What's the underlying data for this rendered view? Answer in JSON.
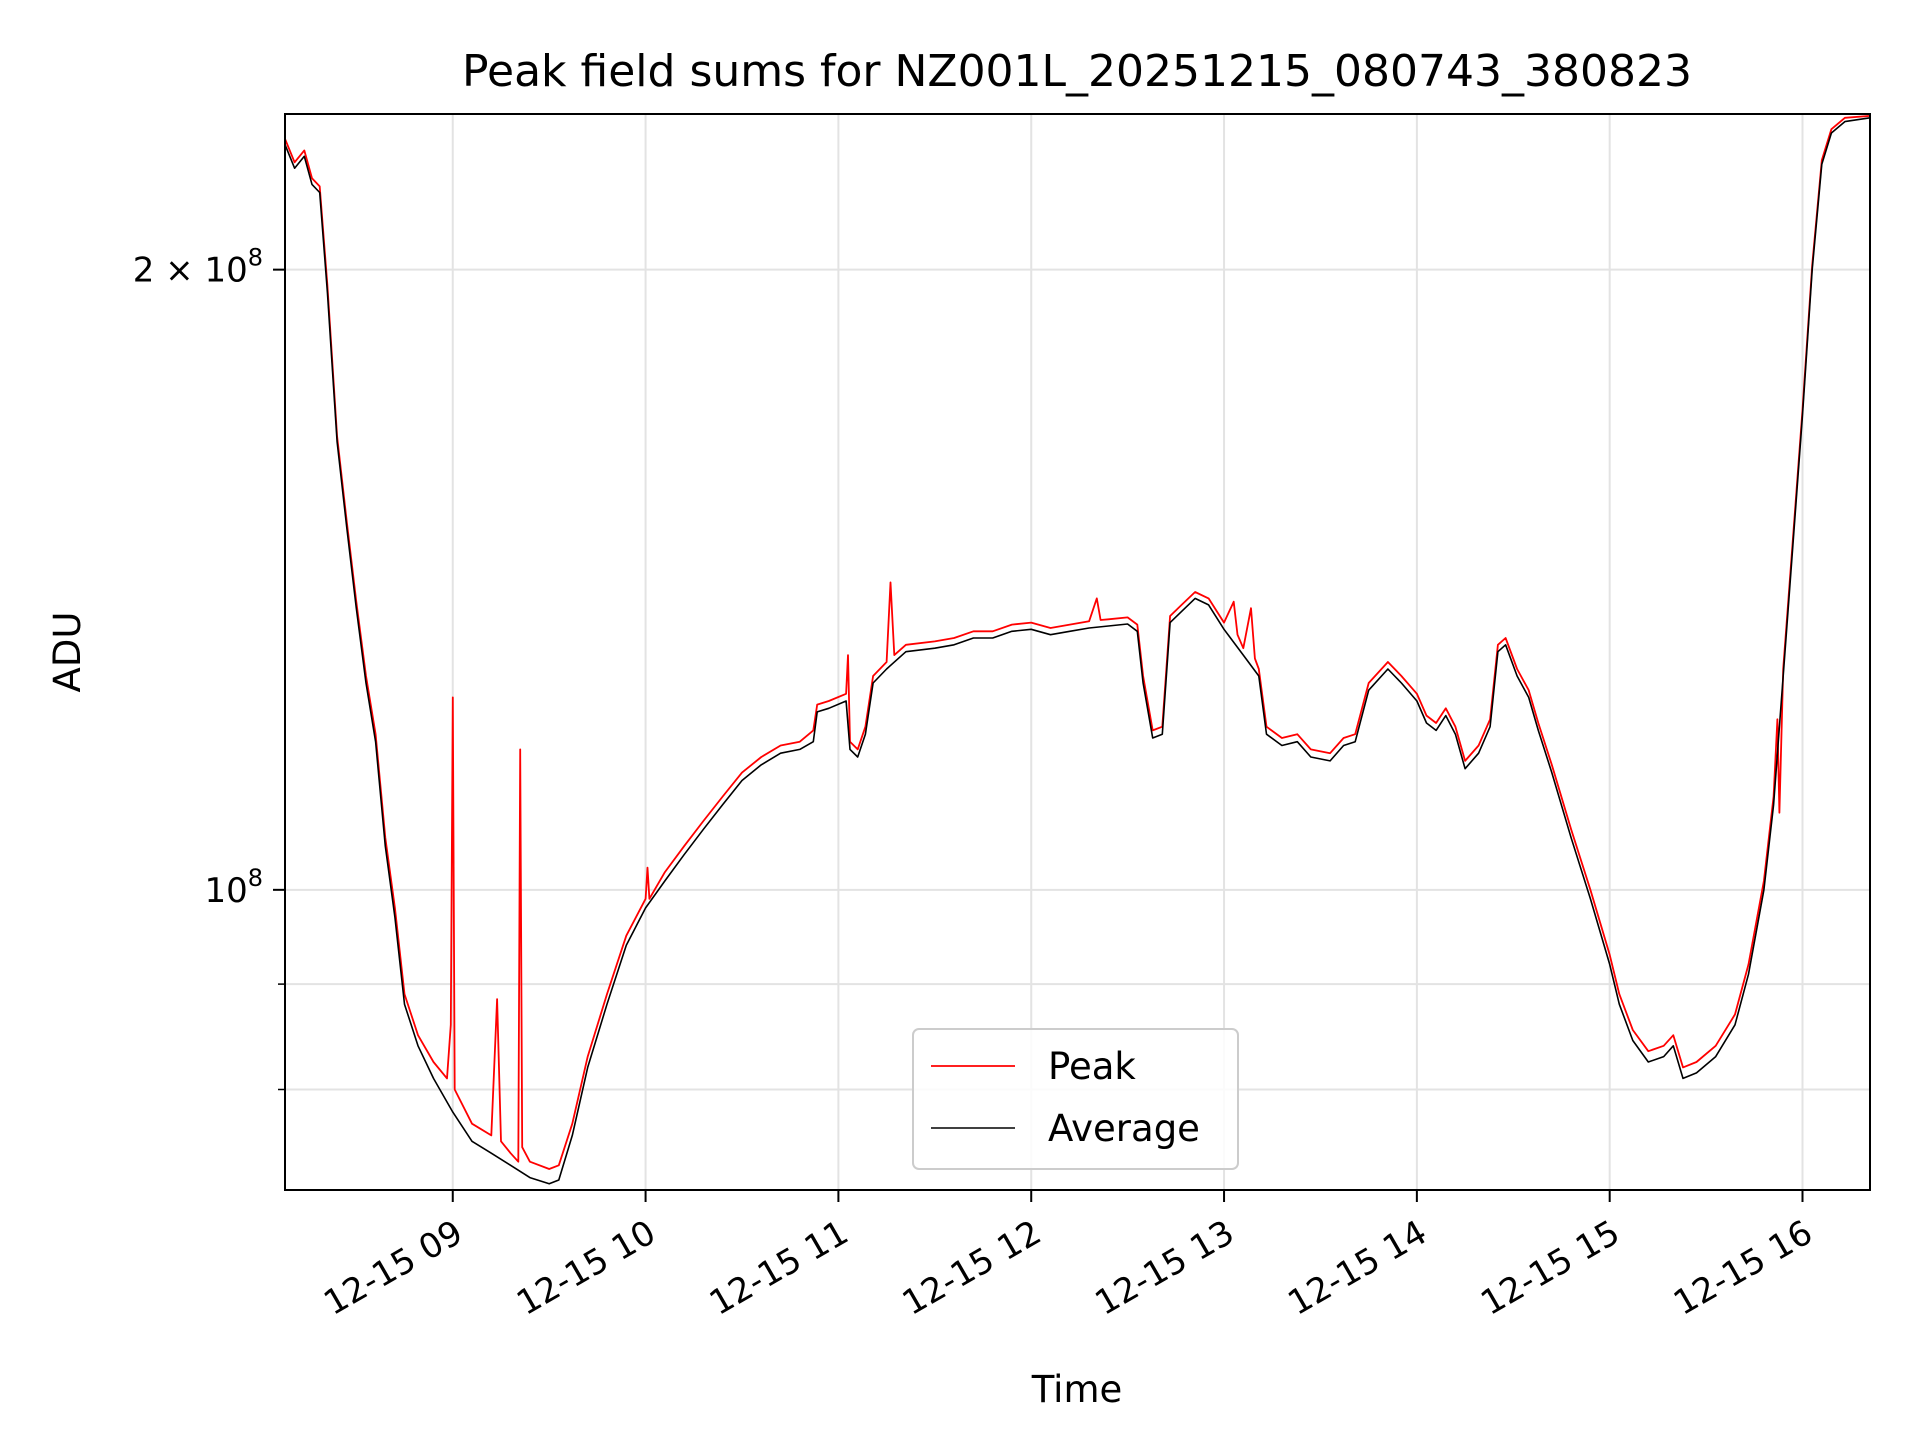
{
  "chart_data": {
    "type": "line",
    "title": "Peak field sums for NZ001L_20251215_080743_380823",
    "xlabel": "Time",
    "ylabel": "ADU",
    "yscale": "log",
    "x_unit": "hours after 12-15 00:00",
    "xlim": [
      8.13,
      16.35
    ],
    "ylim": [
      71500000,
      238000000
    ],
    "x_ticks": [
      {
        "value": 9,
        "label": "12-15 09"
      },
      {
        "value": 10,
        "label": "12-15 10"
      },
      {
        "value": 11,
        "label": "12-15 11"
      },
      {
        "value": 12,
        "label": "12-15 12"
      },
      {
        "value": 13,
        "label": "12-15 13"
      },
      {
        "value": 14,
        "label": "12-15 14"
      },
      {
        "value": 15,
        "label": "12-15 15"
      },
      {
        "value": 16,
        "label": "12-15 16"
      }
    ],
    "y_ticks_major": [
      {
        "value": 100000000,
        "base": "10",
        "exp": "8",
        "coef": ""
      },
      {
        "value": 200000000,
        "base": "10",
        "exp": "8",
        "coef": "2 × "
      }
    ],
    "y_ticks_minor": [
      80000000,
      90000000
    ],
    "grid": true,
    "legend_position": "lower-center",
    "series": [
      {
        "name": "Average",
        "color": "#000000",
        "points": [
          [
            8.13,
            230000000
          ],
          [
            8.18,
            224000000
          ],
          [
            8.23,
            227000000
          ],
          [
            8.27,
            220000000
          ],
          [
            8.31,
            218000000
          ],
          [
            8.35,
            195000000
          ],
          [
            8.4,
            165000000
          ],
          [
            8.45,
            150000000
          ],
          [
            8.5,
            137000000
          ],
          [
            8.55,
            126000000
          ],
          [
            8.6,
            118000000
          ],
          [
            8.65,
            105000000
          ],
          [
            8.7,
            97000000
          ],
          [
            8.75,
            88000000
          ],
          [
            8.82,
            84000000
          ],
          [
            8.9,
            81000000
          ],
          [
            9.0,
            78000000
          ],
          [
            9.1,
            75500000
          ],
          [
            9.2,
            74500000
          ],
          [
            9.3,
            73500000
          ],
          [
            9.4,
            72500000
          ],
          [
            9.5,
            72000000
          ],
          [
            9.55,
            72300000
          ],
          [
            9.62,
            76000000
          ],
          [
            9.7,
            82000000
          ],
          [
            9.8,
            88000000
          ],
          [
            9.9,
            94000000
          ],
          [
            10.0,
            98000000
          ],
          [
            10.1,
            101000000
          ],
          [
            10.2,
            104000000
          ],
          [
            10.3,
            107000000
          ],
          [
            10.4,
            110000000
          ],
          [
            10.5,
            113000000
          ],
          [
            10.6,
            115000000
          ],
          [
            10.7,
            116500000
          ],
          [
            10.8,
            117000000
          ],
          [
            10.87,
            118000000
          ],
          [
            10.89,
            122000000
          ],
          [
            10.95,
            122500000
          ],
          [
            11.04,
            123500000
          ],
          [
            11.06,
            117000000
          ],
          [
            11.1,
            116000000
          ],
          [
            11.14,
            119000000
          ],
          [
            11.18,
            126000000
          ],
          [
            11.25,
            128000000
          ],
          [
            11.35,
            130500000
          ],
          [
            11.5,
            131000000
          ],
          [
            11.6,
            131500000
          ],
          [
            11.7,
            132500000
          ],
          [
            11.8,
            132500000
          ],
          [
            11.9,
            133500000
          ],
          [
            12.0,
            133800000
          ],
          [
            12.1,
            133000000
          ],
          [
            12.2,
            133500000
          ],
          [
            12.3,
            134000000
          ],
          [
            12.4,
            134300000
          ],
          [
            12.5,
            134600000
          ],
          [
            12.55,
            133500000
          ],
          [
            12.58,
            126000000
          ],
          [
            12.63,
            118500000
          ],
          [
            12.68,
            119000000
          ],
          [
            12.72,
            134800000
          ],
          [
            12.78,
            136500000
          ],
          [
            12.85,
            138500000
          ],
          [
            12.92,
            137500000
          ],
          [
            13.0,
            133800000
          ],
          [
            13.1,
            130000000
          ],
          [
            13.18,
            127000000
          ],
          [
            13.22,
            119000000
          ],
          [
            13.3,
            117500000
          ],
          [
            13.38,
            118000000
          ],
          [
            13.45,
            116000000
          ],
          [
            13.55,
            115500000
          ],
          [
            13.62,
            117500000
          ],
          [
            13.68,
            118000000
          ],
          [
            13.75,
            125000000
          ],
          [
            13.85,
            128000000
          ],
          [
            13.92,
            126000000
          ],
          [
            14.0,
            123500000
          ],
          [
            14.05,
            120500000
          ],
          [
            14.1,
            119500000
          ],
          [
            14.15,
            121500000
          ],
          [
            14.2,
            119000000
          ],
          [
            14.25,
            114500000
          ],
          [
            14.32,
            116500000
          ],
          [
            14.38,
            120000000
          ],
          [
            14.42,
            130500000
          ],
          [
            14.46,
            131500000
          ],
          [
            14.52,
            127000000
          ],
          [
            14.58,
            124000000
          ],
          [
            14.63,
            119500000
          ],
          [
            14.7,
            114000000
          ],
          [
            14.8,
            106000000
          ],
          [
            14.9,
            99000000
          ],
          [
            15.0,
            92000000
          ],
          [
            15.05,
            88000000
          ],
          [
            15.12,
            84500000
          ],
          [
            15.2,
            82500000
          ],
          [
            15.28,
            83000000
          ],
          [
            15.33,
            84000000
          ],
          [
            15.38,
            81000000
          ],
          [
            15.45,
            81500000
          ],
          [
            15.55,
            83000000
          ],
          [
            15.65,
            86000000
          ],
          [
            15.72,
            91000000
          ],
          [
            15.8,
            100000000
          ],
          [
            15.85,
            110000000
          ],
          [
            15.9,
            127000000
          ],
          [
            15.95,
            147000000
          ],
          [
            16.0,
            170000000
          ],
          [
            16.05,
            200000000
          ],
          [
            16.1,
            225000000
          ],
          [
            16.15,
            233000000
          ],
          [
            16.22,
            236000000
          ],
          [
            16.35,
            237000000
          ]
        ]
      },
      {
        "name": "Peak",
        "color": "#ff0000",
        "points": [
          [
            8.13,
            231500000
          ],
          [
            8.18,
            225500000
          ],
          [
            8.23,
            228500000
          ],
          [
            8.27,
            221500000
          ],
          [
            8.31,
            219500000
          ],
          [
            8.35,
            196500000
          ],
          [
            8.4,
            166000000
          ],
          [
            8.45,
            151000000
          ],
          [
            8.5,
            138000000
          ],
          [
            8.55,
            127000000
          ],
          [
            8.6,
            119000000
          ],
          [
            8.65,
            106000000
          ],
          [
            8.7,
            98000000
          ],
          [
            8.75,
            89000000
          ],
          [
            8.82,
            85000000
          ],
          [
            8.9,
            82500000
          ],
          [
            8.97,
            81000000
          ],
          [
            8.99,
            86000000
          ],
          [
            9.0,
            124000000
          ],
          [
            9.01,
            80000000
          ],
          [
            9.1,
            77000000
          ],
          [
            9.2,
            76000000
          ],
          [
            9.23,
            88500000
          ],
          [
            9.25,
            75500000
          ],
          [
            9.3,
            74500000
          ],
          [
            9.34,
            73800000
          ],
          [
            9.35,
            117000000
          ],
          [
            9.36,
            75000000
          ],
          [
            9.4,
            73800000
          ],
          [
            9.5,
            73200000
          ],
          [
            9.55,
            73500000
          ],
          [
            9.62,
            77000000
          ],
          [
            9.7,
            83000000
          ],
          [
            9.8,
            89000000
          ],
          [
            9.9,
            95000000
          ],
          [
            10.0,
            99000000
          ],
          [
            10.01,
            102500000
          ],
          [
            10.02,
            99000000
          ],
          [
            10.1,
            102000000
          ],
          [
            10.2,
            105000000
          ],
          [
            10.3,
            108000000
          ],
          [
            10.4,
            111000000
          ],
          [
            10.5,
            114000000
          ],
          [
            10.6,
            116000000
          ],
          [
            10.7,
            117500000
          ],
          [
            10.8,
            118000000
          ],
          [
            10.87,
            119500000
          ],
          [
            10.89,
            123000000
          ],
          [
            10.95,
            123500000
          ],
          [
            11.04,
            124500000
          ],
          [
            11.05,
            130000000
          ],
          [
            11.06,
            118000000
          ],
          [
            11.1,
            117000000
          ],
          [
            11.14,
            120000000
          ],
          [
            11.18,
            127000000
          ],
          [
            11.25,
            129000000
          ],
          [
            11.27,
            141000000
          ],
          [
            11.29,
            130000000
          ],
          [
            11.35,
            131500000
          ],
          [
            11.5,
            132000000
          ],
          [
            11.6,
            132500000
          ],
          [
            11.7,
            133500000
          ],
          [
            11.8,
            133500000
          ],
          [
            11.9,
            134500000
          ],
          [
            12.0,
            134800000
          ],
          [
            12.1,
            134000000
          ],
          [
            12.2,
            134500000
          ],
          [
            12.3,
            135000000
          ],
          [
            12.34,
            138500000
          ],
          [
            12.36,
            135200000
          ],
          [
            12.4,
            135300000
          ],
          [
            12.5,
            135600000
          ],
          [
            12.55,
            134500000
          ],
          [
            12.58,
            127000000
          ],
          [
            12.63,
            119500000
          ],
          [
            12.68,
            120000000
          ],
          [
            12.72,
            135800000
          ],
          [
            12.78,
            137500000
          ],
          [
            12.85,
            139500000
          ],
          [
            12.92,
            138500000
          ],
          [
            13.0,
            134800000
          ],
          [
            13.05,
            138000000
          ],
          [
            13.07,
            133000000
          ],
          [
            13.1,
            131000000
          ],
          [
            13.14,
            137000000
          ],
          [
            13.16,
            129500000
          ],
          [
            13.18,
            128000000
          ],
          [
            13.22,
            120000000
          ],
          [
            13.3,
            118500000
          ],
          [
            13.38,
            119000000
          ],
          [
            13.45,
            117000000
          ],
          [
            13.55,
            116500000
          ],
          [
            13.62,
            118500000
          ],
          [
            13.68,
            119000000
          ],
          [
            13.75,
            126000000
          ],
          [
            13.85,
            129000000
          ],
          [
            13.92,
            127000000
          ],
          [
            14.0,
            124500000
          ],
          [
            14.05,
            121500000
          ],
          [
            14.1,
            120500000
          ],
          [
            14.15,
            122500000
          ],
          [
            14.2,
            120000000
          ],
          [
            14.25,
            115500000
          ],
          [
            14.32,
            117500000
          ],
          [
            14.38,
            121000000
          ],
          [
            14.42,
            131500000
          ],
          [
            14.46,
            132500000
          ],
          [
            14.52,
            128000000
          ],
          [
            14.58,
            125000000
          ],
          [
            14.63,
            120500000
          ],
          [
            14.7,
            115000000
          ],
          [
            14.8,
            107000000
          ],
          [
            14.9,
            100000000
          ],
          [
            15.0,
            93000000
          ],
          [
            15.05,
            89000000
          ],
          [
            15.12,
            85500000
          ],
          [
            15.2,
            83500000
          ],
          [
            15.28,
            84000000
          ],
          [
            15.33,
            85000000
          ],
          [
            15.38,
            82000000
          ],
          [
            15.45,
            82500000
          ],
          [
            15.55,
            84000000
          ],
          [
            15.65,
            87000000
          ],
          [
            15.72,
            92000000
          ],
          [
            15.8,
            101000000
          ],
          [
            15.85,
            111000000
          ],
          [
            15.87,
            121000000
          ],
          [
            15.88,
            109000000
          ],
          [
            15.9,
            128000000
          ],
          [
            15.95,
            148000000
          ],
          [
            16.0,
            171000000
          ],
          [
            16.05,
            201000000
          ],
          [
            16.1,
            226000000
          ],
          [
            16.15,
            234000000
          ],
          [
            16.22,
            237000000
          ],
          [
            16.35,
            237500000
          ]
        ]
      }
    ]
  }
}
